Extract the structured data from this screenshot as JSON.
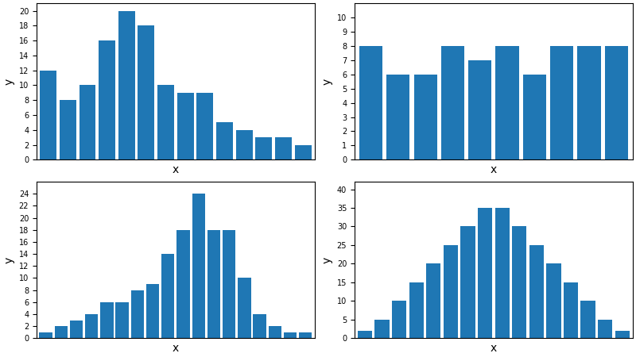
{
  "chart_data": [
    {
      "type": "bar",
      "x_label": "x",
      "y_label": "y",
      "categories": [
        null,
        null,
        null,
        null,
        null,
        null,
        null,
        null,
        null,
        null,
        null,
        null,
        null,
        null
      ],
      "values": [
        12,
        8,
        10,
        16,
        20,
        18,
        10,
        9,
        9,
        5,
        4,
        3,
        3,
        2
      ],
      "ylim": [
        0,
        21
      ],
      "yticks": [
        0,
        2,
        4,
        6,
        8,
        10,
        12,
        14,
        16,
        18,
        20
      ],
      "grid": false,
      "tick_labels": "y"
    },
    {
      "type": "bar",
      "x_label": "x",
      "y_label": "y",
      "categories": [
        null,
        null,
        null,
        null,
        null,
        null,
        null,
        null,
        null,
        null
      ],
      "values": [
        8,
        6,
        6,
        8,
        7,
        8,
        6,
        8,
        8,
        8
      ],
      "ylim": [
        0,
        11
      ],
      "yticks": [
        0,
        1,
        2,
        3,
        4,
        5,
        6,
        7,
        8,
        9,
        10
      ],
      "grid": false,
      "tick_labels": "y"
    },
    {
      "type": "bar",
      "x_label": "x",
      "y_label": "y",
      "categories": [
        null,
        null,
        null,
        null,
        null,
        null,
        null,
        null,
        null,
        null,
        null,
        null,
        null,
        null,
        null,
        null,
        null,
        null
      ],
      "values": [
        1,
        2,
        3,
        4,
        6,
        6,
        8,
        9,
        14,
        18,
        24,
        18,
        18,
        10,
        4,
        2,
        1,
        1
      ],
      "ylim": [
        0,
        26
      ],
      "yticks": [
        0,
        2,
        4,
        6,
        8,
        10,
        12,
        14,
        16,
        18,
        20,
        22,
        24
      ],
      "grid": false,
      "tick_labels": "y"
    },
    {
      "type": "bar",
      "x_label": "x",
      "y_label": "y",
      "categories": [
        null,
        null,
        null,
        null,
        null,
        null,
        null,
        null,
        null,
        null,
        null,
        null,
        null,
        null,
        null,
        null
      ],
      "values": [
        2,
        5,
        10,
        15,
        20,
        25,
        30,
        35,
        35,
        30,
        25,
        20,
        15,
        10,
        5,
        2
      ],
      "ylim": [
        0,
        42
      ],
      "yticks": [
        0,
        5,
        10,
        15,
        20,
        25,
        30,
        35,
        40
      ],
      "grid": false,
      "tick_labels": "y"
    }
  ]
}
